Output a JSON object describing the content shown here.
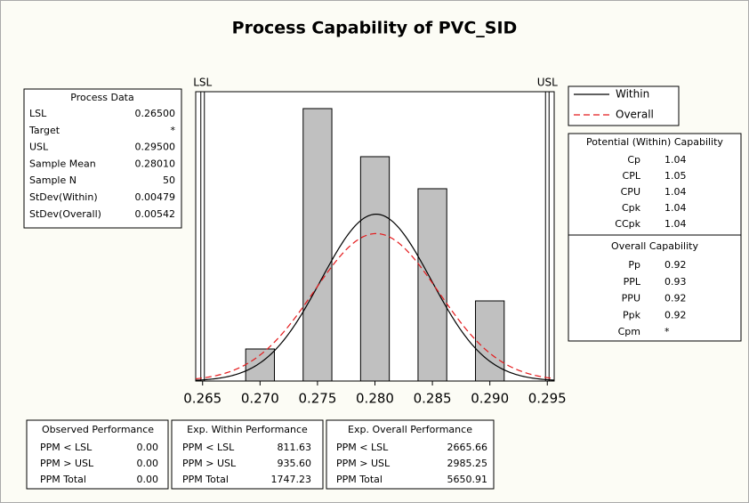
{
  "title": "Process Capability of PVC_SID",
  "chart_data": {
    "type": "histogram",
    "bins": [
      0.26875,
      0.27125,
      0.27375,
      0.27625,
      0.27875,
      0.28125,
      0.28375,
      0.28625,
      0.28875,
      0.29125
    ],
    "counts": [
      2,
      0,
      17,
      0,
      14,
      0,
      12,
      0,
      5
    ],
    "color": "#c0c0c0",
    "xlim": [
      0.2644,
      0.2956
    ],
    "xticks": [
      0.265,
      {
        "value": 0.27,
        "label": "0.270"
      },
      0.275,
      {
        "value": 0.28,
        "label": "0.280"
      },
      0.285,
      {
        "value": 0.29,
        "label": "0.290"
      },
      0.295
    ],
    "spec_labels": [
      "LSL",
      "USL"
    ],
    "curves": [
      {
        "name": "Within",
        "color": "#000000",
        "style": "solid"
      },
      {
        "name": "Overall",
        "color": "#e41a1c",
        "style": "dashed"
      }
    ]
  },
  "process_data": {
    "title": "Process Data",
    "rows": [
      [
        "LSL",
        "0.26500"
      ],
      [
        "Target",
        "*"
      ],
      [
        "USL",
        "0.29500"
      ],
      [
        "Sample Mean",
        "0.28010"
      ],
      [
        "Sample N",
        "50"
      ],
      [
        "StDev(Within)",
        "0.00479"
      ],
      [
        "StDev(Overall)",
        "0.00542"
      ]
    ]
  },
  "potential": {
    "title": "Potential (Within) Capability",
    "rows": [
      [
        "Cp",
        "1.04"
      ],
      [
        "CPL",
        "1.05"
      ],
      [
        "CPU",
        "1.04"
      ],
      [
        "Cpk",
        "1.04"
      ],
      [
        "CCpk",
        "1.04"
      ]
    ]
  },
  "overall": {
    "title": "Overall Capability",
    "rows": [
      [
        "Pp",
        "0.92"
      ],
      [
        "PPL",
        "0.93"
      ],
      [
        "PPU",
        "0.92"
      ],
      [
        "Ppk",
        "0.92"
      ],
      [
        "Cpm",
        "*"
      ]
    ]
  },
  "performance": [
    {
      "title": "Observed Performance",
      "rows": [
        [
          "PPM < LSL",
          "0.00"
        ],
        [
          "PPM > USL",
          "0.00"
        ],
        [
          "PPM Total",
          "0.00"
        ]
      ]
    },
    {
      "title": "Exp. Within Performance",
      "rows": [
        [
          "PPM < LSL",
          "811.63"
        ],
        [
          "PPM > USL",
          "935.60"
        ],
        [
          "PPM Total",
          "1747.23"
        ]
      ]
    },
    {
      "title": "Exp. Overall Performance",
      "rows": [
        [
          "PPM < LSL",
          "2665.66"
        ],
        [
          "PPM > USL",
          "2985.25"
        ],
        [
          "PPM Total",
          "5650.91"
        ]
      ]
    }
  ]
}
